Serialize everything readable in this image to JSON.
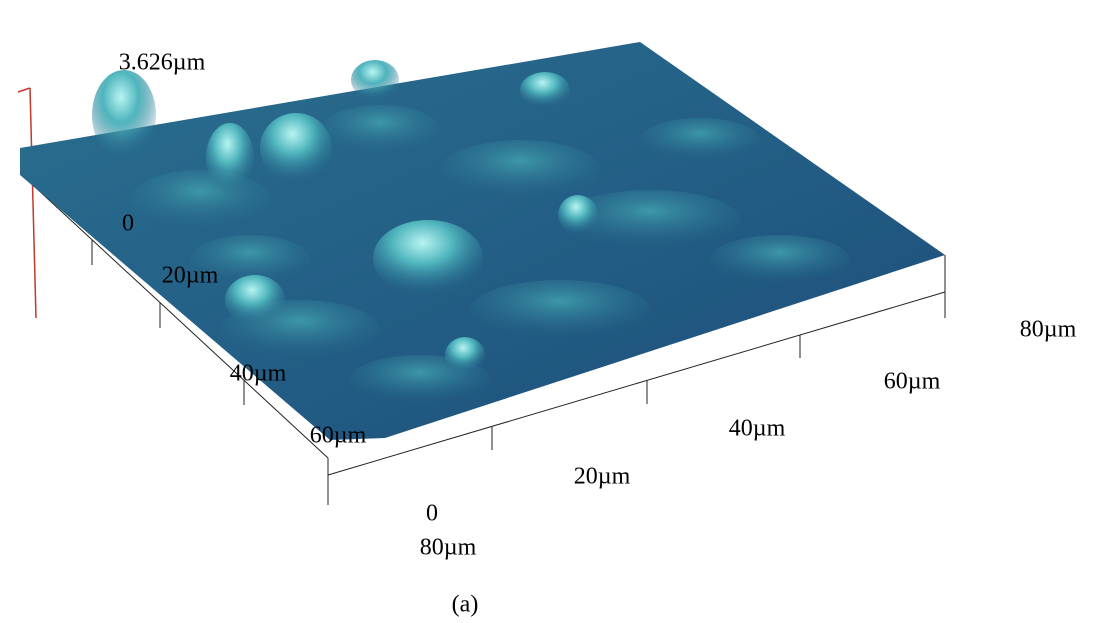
{
  "figure": {
    "z_max_label": "3.626µm",
    "left_axis": {
      "labels": [
        "0",
        "20µm",
        "40µm",
        "60µm",
        "80µm"
      ]
    },
    "bottom_axis": {
      "labels": [
        "0",
        "20µm",
        "40µm",
        "60µm",
        "80µm"
      ]
    },
    "caption": "(a)"
  }
}
